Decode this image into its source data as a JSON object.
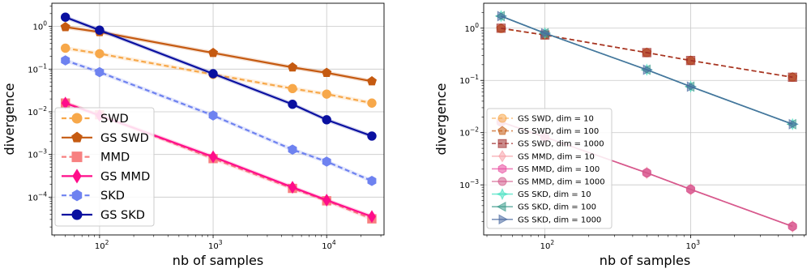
{
  "chart_data": [
    {
      "type": "line",
      "xscale": "log",
      "yscale": "log",
      "xlabel": "nb of samples",
      "ylabel": "divergence",
      "xlim": [
        38,
        32000
      ],
      "ylim": [
        1.3e-05,
        3.5
      ],
      "xticks": [
        {
          "value": 100,
          "base": "10",
          "exp": "2"
        },
        {
          "value": 1000,
          "base": "10",
          "exp": "3"
        },
        {
          "value": 10000,
          "base": "10",
          "exp": "4"
        }
      ],
      "yticks": [
        {
          "value": 0.0001,
          "base": "10",
          "exp": "−4"
        },
        {
          "value": 0.001,
          "base": "10",
          "exp": "−3"
        },
        {
          "value": 0.01,
          "base": "10",
          "exp": "−2"
        },
        {
          "value": 0.1,
          "base": "10",
          "exp": "−1"
        },
        {
          "value": 1,
          "base": "10",
          "exp": "0"
        }
      ],
      "grid": true,
      "legend_position": "lower-left",
      "x": [
        50,
        100,
        1000,
        5000,
        10000,
        25000
      ],
      "series": [
        {
          "name": "SWD",
          "color": "#f7a84a",
          "dash": "dashed",
          "marker": "circle",
          "values": [
            0.31,
            0.23,
            0.075,
            0.035,
            0.026,
            0.016
          ]
        },
        {
          "name": "GS SWD",
          "color": "#c55a11",
          "dash": "solid",
          "marker": "pentagon",
          "values": [
            0.97,
            0.74,
            0.24,
            0.11,
            0.082,
            0.052
          ]
        },
        {
          "name": "MMD",
          "color": "#f78080",
          "dash": "dashed",
          "marker": "square",
          "values": [
            0.016,
            0.0085,
            0.0008,
            0.00016,
            8.2e-05,
            3.1e-05
          ]
        },
        {
          "name": "GS MMD",
          "color": "#ff0d8a",
          "dash": "solid",
          "marker": "diamond",
          "values": [
            0.016,
            0.0082,
            0.00088,
            0.00017,
            8.5e-05,
            3.5e-05
          ]
        },
        {
          "name": "SKD",
          "color": "#6e82f0",
          "dash": "dashed",
          "marker": "hexagon",
          "values": [
            0.16,
            0.085,
            0.0082,
            0.0013,
            0.00068,
            0.00024
          ]
        },
        {
          "name": "GS SKD",
          "color": "#0a10a0",
          "dash": "solid",
          "marker": "circle",
          "values": [
            1.65,
            0.82,
            0.078,
            0.015,
            0.0065,
            0.0027
          ]
        }
      ]
    },
    {
      "type": "line",
      "xscale": "log",
      "yscale": "log",
      "xlabel": "nb of samples",
      "ylabel": "divergence",
      "xlim": [
        38,
        6200
      ],
      "ylim": [
        0.00011,
        3.0
      ],
      "xticks": [
        {
          "value": 100,
          "base": "10",
          "exp": "2"
        },
        {
          "value": 1000,
          "base": "10",
          "exp": "3"
        }
      ],
      "yticks": [
        {
          "value": 0.001,
          "base": "10",
          "exp": "−3"
        },
        {
          "value": 0.01,
          "base": "10",
          "exp": "−2"
        },
        {
          "value": 0.1,
          "base": "10",
          "exp": "−1"
        },
        {
          "value": 1,
          "base": "10",
          "exp": "0"
        }
      ],
      "grid": true,
      "legend_position": "lower-left",
      "x": [
        50,
        100,
        500,
        1000,
        5000
      ],
      "series": [
        {
          "name": "GS SWD, dim = 10",
          "color": "#f7a84a",
          "dash": "dashed",
          "marker": "circle",
          "values": [
            0.98,
            0.74,
            0.34,
            0.24,
            0.115
          ]
        },
        {
          "name": "GS SWD, dim = 100",
          "color": "#c55a11",
          "dash": "dashed",
          "marker": "pentagon",
          "values": [
            0.99,
            0.74,
            0.34,
            0.24,
            0.115
          ]
        },
        {
          "name": "GS SWD, dim = 1000",
          "color": "#9e2a2a",
          "dash": "dashed",
          "marker": "square",
          "values": [
            1.0,
            0.74,
            0.34,
            0.24,
            0.115
          ]
        },
        {
          "name": "GS MMD, dim = 10",
          "color": "#f7a0a8",
          "dash": "solid",
          "marker": "diamond",
          "values": [
            0.016,
            0.0082,
            0.0017,
            0.00082,
            0.00016
          ]
        },
        {
          "name": "GS MMD, dim = 100",
          "color": "#e84a9e",
          "dash": "solid",
          "marker": "hexagon",
          "values": [
            0.016,
            0.0082,
            0.0017,
            0.00082,
            0.00016
          ]
        },
        {
          "name": "GS MMD, dim = 1000",
          "color": "#d25a8a",
          "dash": "solid",
          "marker": "circle",
          "values": [
            0.016,
            0.0082,
            0.0017,
            0.00082,
            0.00016
          ]
        },
        {
          "name": "GS SKD, dim = 10",
          "color": "#40e0c0",
          "dash": "solid",
          "marker": "star",
          "values": [
            1.7,
            0.8,
            0.16,
            0.076,
            0.0145
          ]
        },
        {
          "name": "GS SKD, dim = 100",
          "color": "#3a9a8a",
          "dash": "solid",
          "marker": "triangle-left",
          "values": [
            1.7,
            0.8,
            0.16,
            0.076,
            0.0145
          ]
        },
        {
          "name": "GS SKD, dim = 1000",
          "color": "#4a6aa0",
          "dash": "solid",
          "marker": "triangle-right",
          "values": [
            1.7,
            0.8,
            0.16,
            0.076,
            0.0145
          ]
        }
      ]
    }
  ]
}
